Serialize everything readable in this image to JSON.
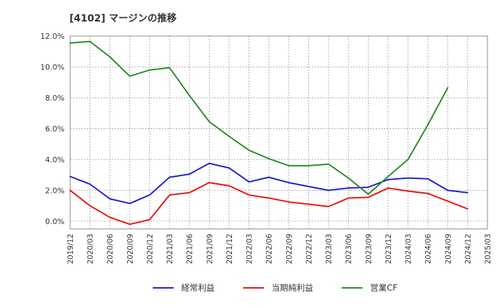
{
  "chart_data": {
    "type": "line",
    "title": "[4102]  マージンの推移",
    "xlabel": "",
    "ylabel": "",
    "ylim": [
      -0.5,
      12.0
    ],
    "yticks": [
      0,
      2,
      4,
      6,
      8,
      10,
      12
    ],
    "ytick_labels": [
      "0.0%",
      "2.0%",
      "4.0%",
      "6.0%",
      "8.0%",
      "10.0%",
      "12.0%"
    ],
    "x": [
      "2019/12",
      "2020/03",
      "2020/06",
      "2020/09",
      "2020/12",
      "2021/03",
      "2021/06",
      "2021/09",
      "2021/12",
      "2022/03",
      "2022/06",
      "2022/09",
      "2022/12",
      "2023/03",
      "2023/06",
      "2023/09",
      "2023/12",
      "2024/03",
      "2024/06",
      "2024/09",
      "2024/12",
      "2025/03"
    ],
    "grid": true,
    "legend_position": "bottom",
    "series": [
      {
        "name": "経常利益",
        "color": "#1f1fcc",
        "values": [
          2.9,
          2.4,
          1.45,
          1.15,
          1.7,
          2.85,
          3.05,
          3.75,
          3.45,
          2.55,
          2.85,
          2.5,
          2.25,
          2.0,
          2.15,
          2.2,
          2.7,
          2.8,
          2.75,
          2.0,
          1.85,
          null
        ]
      },
      {
        "name": "当期純利益",
        "color": "#e81313",
        "values": [
          2.0,
          1.0,
          0.25,
          -0.2,
          0.1,
          1.7,
          1.85,
          2.5,
          2.3,
          1.7,
          1.5,
          1.25,
          1.1,
          0.95,
          1.5,
          1.55,
          2.15,
          1.95,
          1.8,
          1.3,
          0.8,
          null
        ]
      },
      {
        "name": "営業CF",
        "color": "#2a8c2a",
        "values": [
          11.55,
          11.65,
          10.65,
          9.4,
          9.8,
          9.95,
          8.15,
          6.45,
          5.5,
          4.6,
          4.05,
          3.6,
          3.6,
          3.7,
          2.8,
          1.75,
          2.9,
          4.0,
          6.25,
          8.65,
          null,
          null
        ]
      }
    ]
  }
}
